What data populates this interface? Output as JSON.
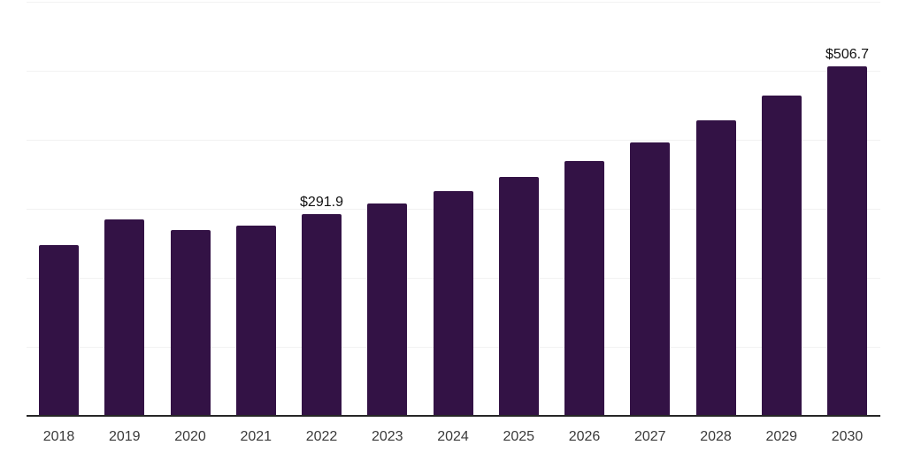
{
  "chart_data": {
    "type": "bar",
    "title": "",
    "xlabel": "",
    "ylabel": "",
    "categories": [
      "2018",
      "2019",
      "2020",
      "2021",
      "2022",
      "2023",
      "2024",
      "2025",
      "2026",
      "2027",
      "2028",
      "2029",
      "2030"
    ],
    "values": [
      247.2,
      284.3,
      269.1,
      275.5,
      291.9,
      307.3,
      325.2,
      346.4,
      369.2,
      396.6,
      427.9,
      464.7,
      506.7
    ],
    "data_labels": [
      {
        "category": "2022",
        "text": "$291.9"
      },
      {
        "category": "2030",
        "text": "$506.7"
      }
    ],
    "ylim": [
      0,
      600
    ],
    "gridline_step": 100,
    "grid": "horizontal-only",
    "legend_position": "none",
    "colors": {
      "bar": "#331245",
      "gridline": "#f2f2f2",
      "axis_line": "#262626",
      "x_label_text": "#3a3a3a",
      "data_label_text": "#111111",
      "background": "#ffffff"
    }
  }
}
